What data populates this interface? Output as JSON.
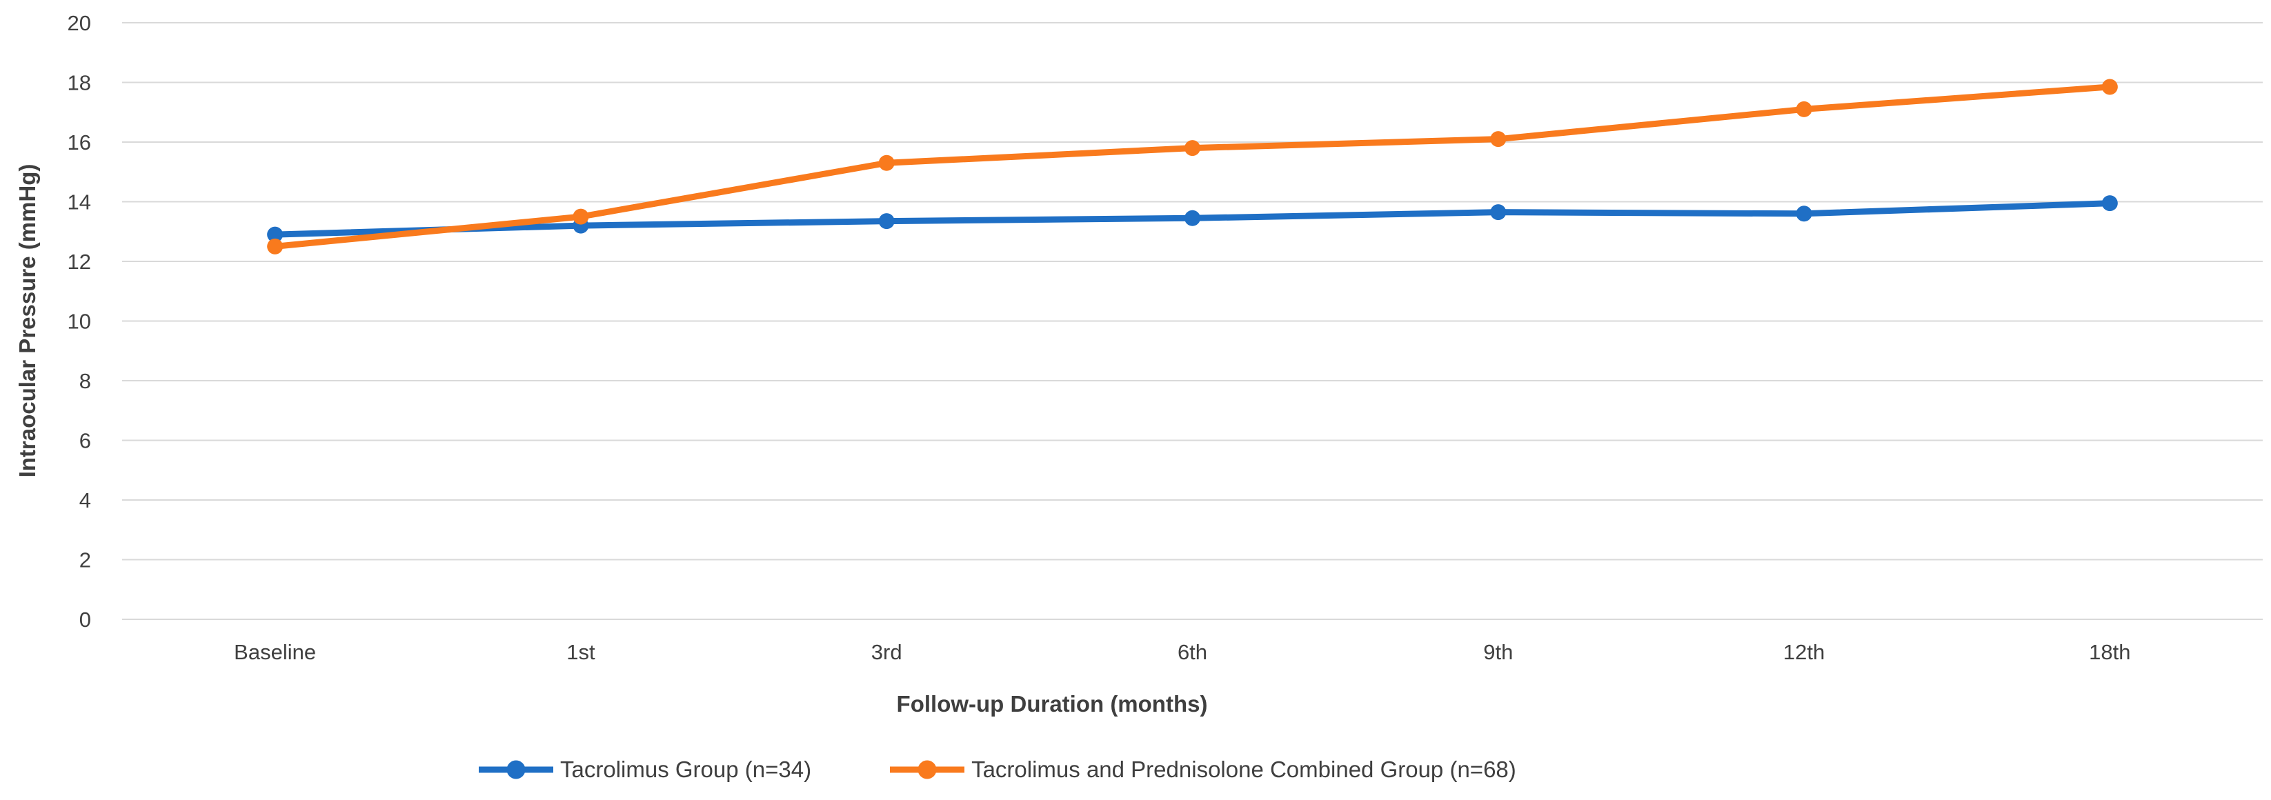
{
  "chart_data": {
    "type": "line",
    "title": "",
    "categories": [
      "Baseline",
      "1st",
      "3rd",
      "6th",
      "9th",
      "12th",
      "18th"
    ],
    "series": [
      {
        "name": "Tacrolimus Group (n=34)",
        "color": "#1F6FC5",
        "values": [
          12.9,
          13.2,
          13.35,
          13.45,
          13.65,
          13.6,
          13.95
        ]
      },
      {
        "name": "Tacrolimus and Prednisolone Combined Group (n=68)",
        "color": "#F97A1D",
        "values": [
          12.5,
          13.5,
          15.3,
          15.8,
          16.1,
          17.1,
          17.85
        ]
      }
    ],
    "xlabel": "Follow-up Duration (months)",
    "ylabel": "Intraocular Pressure (mmHg)",
    "ylim": [
      0,
      20
    ],
    "yticks": [
      0,
      2,
      4,
      6,
      8,
      10,
      12,
      14,
      16,
      18,
      20
    ],
    "grid": "horizontal",
    "legend_position": "bottom"
  },
  "legend": {
    "items": [
      {
        "label": "Tacrolimus Group (n=34)",
        "color": "#1F6FC5"
      },
      {
        "label": "Tacrolimus and Prednisolone Combined Group (n=68)",
        "color": "#F97A1D"
      }
    ]
  },
  "colors": {
    "gridline": "#D9D9D9",
    "tick_text": "#404040",
    "axis_title_text": "#3F3F3F",
    "background": "#FFFFFF"
  }
}
